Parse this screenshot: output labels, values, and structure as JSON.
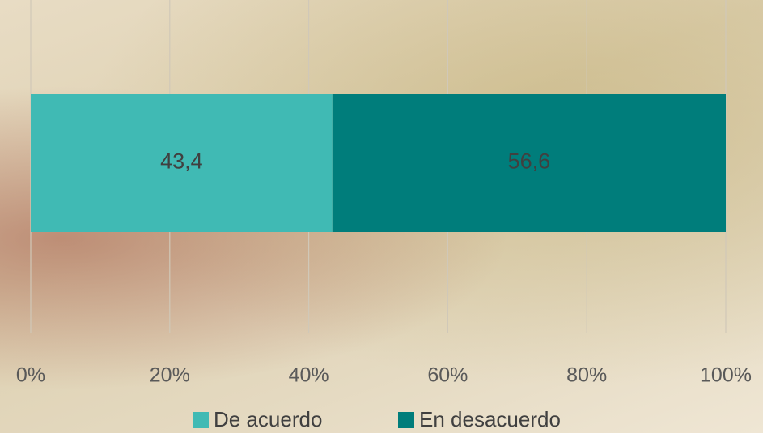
{
  "chart_data": {
    "type": "stacked-bar-horizontal",
    "categories": [
      null
    ],
    "series": [
      {
        "name": "De acuerdo",
        "color": "#40bab4",
        "values": [
          43.4
        ],
        "value_labels": [
          "43,4"
        ]
      },
      {
        "name": "En desacuerdo",
        "color": "#007d7b",
        "values": [
          56.6
        ],
        "value_labels": [
          "56,6"
        ]
      }
    ],
    "xlim": [
      0,
      100
    ],
    "xticks": [
      {
        "value": 0,
        "label": "0%"
      },
      {
        "value": 20,
        "label": "20%"
      },
      {
        "value": 40,
        "label": "40%"
      },
      {
        "value": 60,
        "label": "60%"
      },
      {
        "value": 80,
        "label": "80%"
      },
      {
        "value": 100,
        "label": "100%"
      }
    ],
    "grid": true,
    "legend": "bottom"
  }
}
